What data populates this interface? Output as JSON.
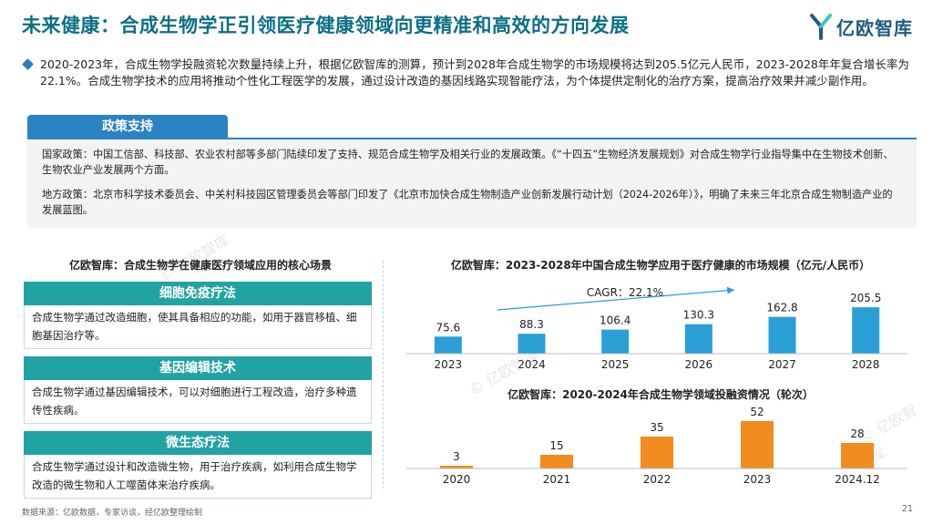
{
  "title": "未来健康：合成生物学正引领医疗健康领域向更精准和高效的方向发展",
  "brand": {
    "name": "亿欧智库",
    "logo_icon": "yiou-logo-icon",
    "logo_color": "#1d5c80",
    "accent_color": "#3fc1c9"
  },
  "intro": "2020-2023年，合成生物学投融资轮次数量持续上升，根据亿欧智库的测算，预计到2028年合成生物学的市场规模将达到205.5亿元人民币，2023-2028年年复合增长率为22.1%。合成生物学技术的应用将推动个性化工程医学的发展，通过设计改造的基因线路实现智能疗法，为个体提供定制化的治疗方案，提高治疗效果并减少副作用。",
  "policy": {
    "tab": "政策支持",
    "national": "国家政策：中国工信部、科技部、农业农村部等多部门陆续印发了支持、规范合成生物学及相关行业的发展政策。《“十四五”生物经济发展规划》对合成生物学行业指导集中在生物技术创新、生物农业产业发展两个方面。",
    "local": "地方政策：北京市科学技术委员会、中关村科技园区管理委员会等部门印发了《北京市加快合成生物制造产业创新发展行动计划（2024-2026年）》，明确了未来三年北京合成生物制造产业的发展蓝图。"
  },
  "scenes": {
    "heading": "亿欧智库：合成生物学在健康医疗领域应用的核心场景",
    "items": [
      {
        "title": "细胞免疫疗法",
        "desc": "合成生物学通过改造细胞，使其具备相应的功能，如用于器官移植、细胞基因治疗等。"
      },
      {
        "title": "基因编辑技术",
        "desc": "合成生物学通过基因编辑技术，可以对细胞进行工程改造，治疗多种遗传性疾病。"
      },
      {
        "title": "微生态疗法",
        "desc": "合成生物学通过设计和改造微生物，用于治疗疾病，如利用合成生物学改造的微生物和人工噬菌体来治疗疾病。"
      }
    ]
  },
  "chart_data": [
    {
      "type": "bar",
      "title": "亿欧智库：2023-2028年中国合成生物学应用于医疗健康的市场规模（亿元/人民币）",
      "categories": [
        "2023",
        "2024",
        "2025",
        "2026",
        "2027",
        "2028"
      ],
      "values": [
        75.6,
        88.3,
        106.4,
        130.3,
        162.8,
        205.5
      ],
      "annotation": "CAGR：22.1%",
      "color": "#2a9fd6",
      "ylim": [
        0,
        210
      ],
      "grid": false
    },
    {
      "type": "bar",
      "title": "亿欧智库：2020-2024年合成生物学领域投融资情况（轮次）",
      "categories": [
        "2020",
        "2021",
        "2022",
        "2023",
        "2024.12"
      ],
      "values": [
        3,
        15,
        35,
        52,
        28
      ],
      "color": "#f28c1e",
      "ylim": [
        0,
        52
      ],
      "grid": false
    }
  ],
  "watermark": "© 亿欧智库",
  "footer": "数据来源：亿欧数据，专家访谈，经亿欧整理绘制",
  "page_number": "21"
}
